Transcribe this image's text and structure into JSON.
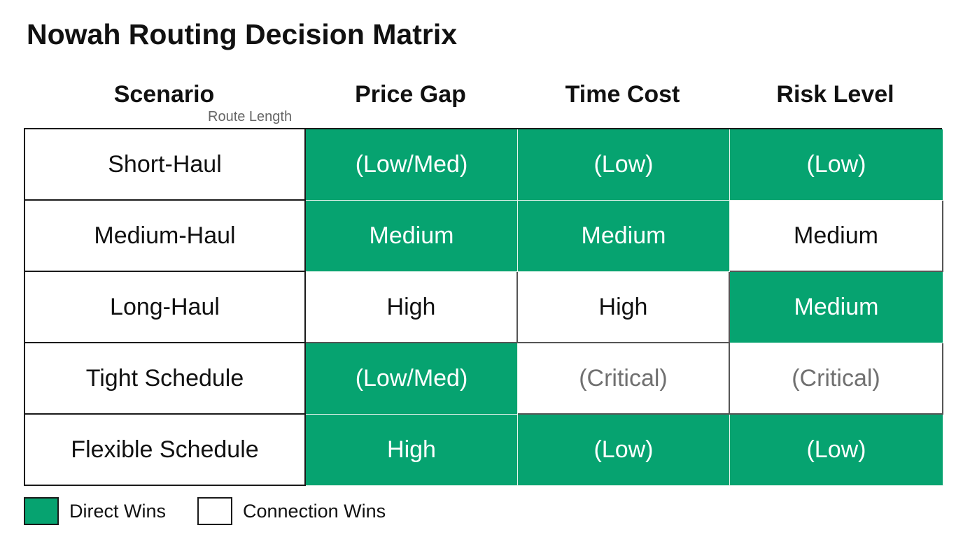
{
  "title": "Nowah Routing Decision Matrix",
  "columns": {
    "scenario": "Scenario",
    "scenario_sub": "Route Length",
    "price_gap": "Price Gap",
    "time_cost": "Time Cost",
    "risk_level": "Risk Level"
  },
  "rows": [
    {
      "scenario": "Short-Haul",
      "price_gap": "(Low/Med)",
      "time_cost": "(Low)",
      "risk_level": "(Low)",
      "winners": [
        "direct",
        "direct",
        "direct"
      ]
    },
    {
      "scenario": "Medium-Haul",
      "price_gap": "Medium",
      "time_cost": "Medium",
      "risk_level": "Medium",
      "winners": [
        "direct",
        "direct",
        "connection"
      ]
    },
    {
      "scenario": "Long-Haul",
      "price_gap": "High",
      "time_cost": "High",
      "risk_level": "Medium",
      "winners": [
        "connection",
        "connection",
        "direct"
      ]
    },
    {
      "scenario": "Tight Schedule",
      "price_gap": "(Low/Med)",
      "time_cost": "(Critical)",
      "risk_level": "(Critical)",
      "winners": [
        "direct",
        "connection",
        "connection"
      ]
    },
    {
      "scenario": "Flexible Schedule",
      "price_gap": "High",
      "time_cost": "(Low)",
      "risk_level": "(Low)",
      "winners": [
        "direct",
        "direct",
        "direct"
      ]
    }
  ],
  "legend": {
    "direct_label": "Direct Wins",
    "connection_label": "Connection Wins"
  },
  "colors": {
    "direct": "#06a370",
    "connection": "#ffffff"
  }
}
